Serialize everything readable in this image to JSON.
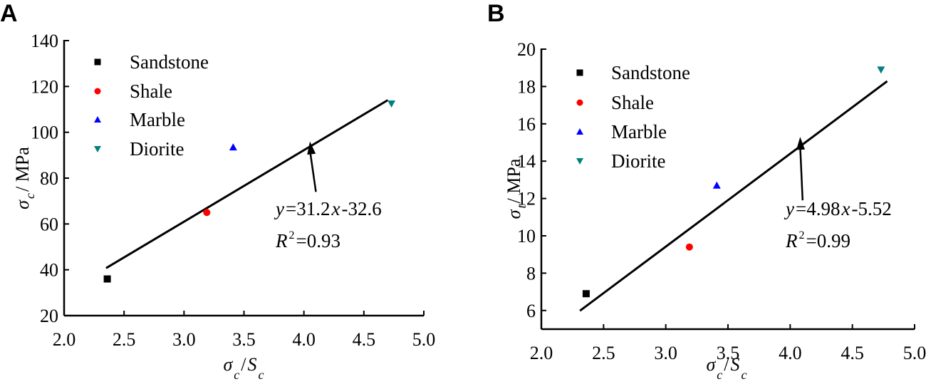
{
  "chart_data": [
    {
      "type": "scatter",
      "panel_label": "A",
      "xlabel": {
        "main": "σ",
        "sub1": "c",
        "slash": " / ",
        "main2": "S",
        "sub2": "c"
      },
      "ylabel": {
        "main": "σ",
        "sub": "c",
        "unit": " / MPa"
      },
      "xlim": [
        2.0,
        5.0
      ],
      "ylim": [
        20,
        140
      ],
      "xticks": [
        "2.0",
        "2.5",
        "3.0",
        "3.5",
        "4.0",
        "4.5",
        "5.0"
      ],
      "yticks": [
        "20",
        "40",
        "60",
        "80",
        "100",
        "120",
        "140"
      ],
      "grid": false,
      "legend_placement": "top-left",
      "series": [
        {
          "name": "Sandstone",
          "marker": "square",
          "color": "#000000",
          "x": [
            2.36
          ],
          "y": [
            36
          ]
        },
        {
          "name": "Shale",
          "marker": "circle",
          "color": "#ff0000",
          "x": [
            3.19
          ],
          "y": [
            65
          ]
        },
        {
          "name": "Marble",
          "marker": "triangle-up",
          "color": "#0000ff",
          "x": [
            3.41
          ],
          "y": [
            93.5
          ]
        },
        {
          "name": "Diorite",
          "marker": "triangle-down",
          "color": "#008080",
          "x": [
            4.73
          ],
          "y": [
            112.5
          ]
        }
      ],
      "fit": {
        "slope": 31.2,
        "intercept": -32.6,
        "x_range": [
          2.35,
          4.7
        ]
      },
      "annotation": {
        "eq_y": "y",
        "eq_rest": "=31.2",
        "eq_x": "x",
        "eq_tail": "-32.6",
        "r": "R",
        "r_sup": "2",
        "r_val": "=0.93",
        "arrow_from": [
          4.1,
          74
        ],
        "arrow_to": [
          4.05,
          96
        ]
      }
    },
    {
      "type": "scatter",
      "panel_label": "B",
      "xlabel": {
        "main": "σ",
        "sub1": "c",
        "slash": " / ",
        "main2": "S",
        "sub2": "c"
      },
      "ylabel": {
        "main": "σ",
        "sub": "t",
        "unit": " / MPa"
      },
      "xlim": [
        2.0,
        5.0
      ],
      "ylim": [
        5,
        20
      ],
      "xticks": [
        "2.0",
        "2.5",
        "3.0",
        "3.5",
        "4.0",
        "4.5",
        "5.0"
      ],
      "yticks": [
        "6",
        "8",
        "10",
        "12",
        "14",
        "16",
        "18",
        "20"
      ],
      "grid": false,
      "legend_placement": "top-left",
      "series": [
        {
          "name": "Sandstone",
          "marker": "square",
          "color": "#000000",
          "x": [
            2.36
          ],
          "y": [
            6.9
          ]
        },
        {
          "name": "Shale",
          "marker": "circle",
          "color": "#ff0000",
          "x": [
            3.19
          ],
          "y": [
            9.4
          ]
        },
        {
          "name": "Marble",
          "marker": "triangle-up",
          "color": "#0000ff",
          "x": [
            3.41
          ],
          "y": [
            12.7
          ]
        },
        {
          "name": "Diorite",
          "marker": "triangle-down",
          "color": "#008080",
          "x": [
            4.73
          ],
          "y": [
            18.9
          ]
        }
      ],
      "fit": {
        "slope": 4.98,
        "intercept": -5.52,
        "x_range": [
          2.31,
          4.78
        ]
      },
      "annotation": {
        "eq_y": "y",
        "eq_rest": "=4.98",
        "eq_x": "x",
        "eq_tail": "-5.52",
        "r": "R",
        "r_sup": "2",
        "r_val": "=0.99",
        "arrow_from": [
          4.1,
          11.9
        ],
        "arrow_to": [
          4.08,
          15.3
        ]
      }
    }
  ]
}
